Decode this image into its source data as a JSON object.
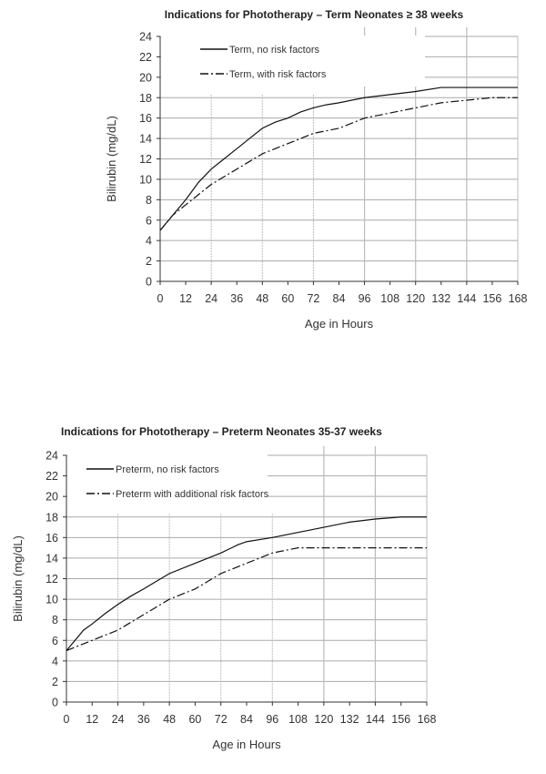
{
  "chart_data": [
    {
      "type": "line",
      "title": "Indications for Phototherapy – Term Neonates ≥ 38 weeks",
      "xlabel": "Age in Hours",
      "ylabel": "Bilirubin (mg/dL)",
      "xlim": [
        0,
        168
      ],
      "ylim": [
        0,
        24
      ],
      "xticks": [
        0,
        12,
        24,
        36,
        48,
        60,
        72,
        84,
        96,
        108,
        120,
        132,
        144,
        156,
        168
      ],
      "yticks": [
        0,
        2,
        4,
        6,
        8,
        10,
        12,
        14,
        16,
        18,
        20,
        22,
        24
      ],
      "grid": true,
      "legend": "top-left",
      "series": [
        {
          "name": "Term, no risk factors",
          "style": "solid",
          "x": [
            0,
            6,
            12,
            18,
            24,
            30,
            36,
            42,
            48,
            54,
            60,
            66,
            72,
            78,
            84,
            96,
            108,
            120,
            132,
            168
          ],
          "y": [
            5,
            6.5,
            8,
            9.7,
            11,
            12,
            13,
            14,
            15,
            15.6,
            16,
            16.6,
            17,
            17.3,
            17.5,
            18,
            18.3,
            18.6,
            19,
            19
          ]
        },
        {
          "name": "Term, with risk factors",
          "style": "dashdot",
          "x": [
            0,
            6,
            12,
            24,
            36,
            48,
            60,
            72,
            84,
            96,
            108,
            120,
            132,
            156,
            168
          ],
          "y": [
            5,
            6.5,
            7.5,
            9.5,
            11,
            12.5,
            13.5,
            14.5,
            15,
            16,
            16.5,
            17,
            17.5,
            18,
            18
          ]
        }
      ]
    },
    {
      "type": "line",
      "title": "Indications for Phototherapy – Preterm Neonates 35-37 weeks",
      "xlabel": "Age in Hours",
      "ylabel": "Bilirubin (mg/dL)",
      "xlim": [
        0,
        168
      ],
      "ylim": [
        0,
        24
      ],
      "xticks": [
        0,
        12,
        24,
        36,
        48,
        60,
        72,
        84,
        96,
        108,
        120,
        132,
        144,
        156,
        168
      ],
      "yticks": [
        0,
        2,
        4,
        6,
        8,
        10,
        12,
        14,
        16,
        18,
        20,
        22,
        24
      ],
      "grid": true,
      "legend": "top-left",
      "series": [
        {
          "name": "Preterm, no risk factors",
          "style": "solid",
          "x": [
            0,
            8,
            12,
            18,
            24,
            30,
            36,
            48,
            60,
            72,
            80,
            84,
            96,
            108,
            120,
            132,
            144,
            156,
            168
          ],
          "y": [
            5,
            7,
            7.6,
            8.6,
            9.5,
            10.3,
            11,
            12.5,
            13.5,
            14.5,
            15.3,
            15.6,
            16,
            16.5,
            17,
            17.5,
            17.8,
            18,
            18
          ]
        },
        {
          "name": "Preterm with additional risk factors",
          "style": "dashdot",
          "x": [
            0,
            12,
            24,
            36,
            48,
            60,
            72,
            84,
            96,
            108,
            168
          ],
          "y": [
            5,
            6,
            7,
            8.5,
            10,
            11,
            12.5,
            13.5,
            14.5,
            15,
            15
          ]
        }
      ]
    }
  ]
}
